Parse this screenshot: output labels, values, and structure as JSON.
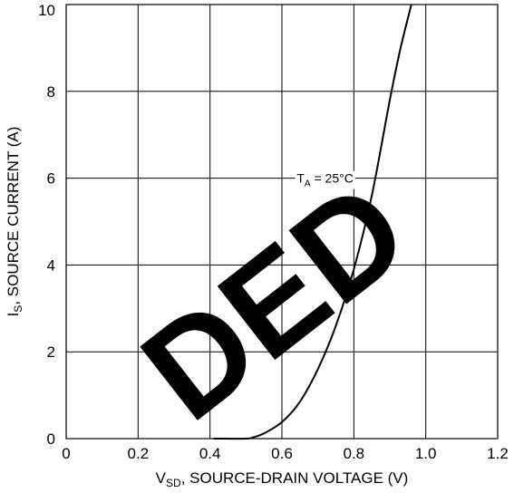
{
  "chart_data": {
    "type": "line",
    "xlabel_main": "V",
    "xlabel_sub": "SD",
    "xlabel_rest": ", SOURCE-DRAIN VOLTAGE (V)",
    "ylabel_main": "I",
    "ylabel_sub": "S",
    "ylabel_rest": ", SOURCE CURRENT (A)",
    "xlim": [
      0,
      1.2
    ],
    "ylim": [
      0,
      10
    ],
    "x_ticks": [
      0,
      0.2,
      0.4,
      0.6,
      0.8,
      1.0,
      1.2
    ],
    "x_tick_labels": [
      "0",
      "0.2",
      "0.4",
      "0.6",
      "0.8",
      "1.0",
      "1.2"
    ],
    "y_ticks": [
      0,
      2,
      4,
      6,
      8,
      10
    ],
    "y_tick_labels": [
      "0",
      "2",
      "4",
      "6",
      "8",
      "10"
    ],
    "grid": true,
    "annotation": {
      "prefix": "T",
      "sub": "A",
      "suffix": " = 25°C",
      "x": 0.72,
      "y": 6.0
    },
    "series": [
      {
        "x": [
          0.41,
          0.5,
          0.52,
          0.55,
          0.6,
          0.65,
          0.7,
          0.75,
          0.8,
          0.85,
          0.9,
          0.93,
          0.96
        ],
        "y": [
          0.0,
          0.0,
          0.03,
          0.12,
          0.38,
          0.85,
          1.6,
          2.6,
          3.9,
          5.6,
          7.8,
          9.0,
          10.0
        ]
      }
    ]
  },
  "watermark": {
    "text": "DED"
  }
}
